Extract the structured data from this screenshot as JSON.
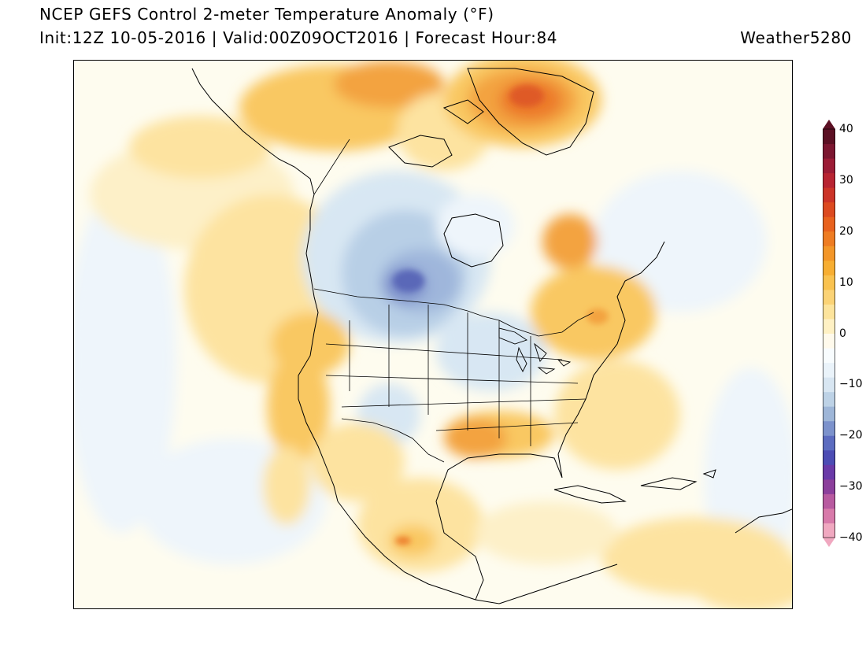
{
  "header": {
    "title": "NCEP GEFS Control 2-meter Temperature Anomaly (°F)",
    "subtitle": "Init:12Z 10-05-2016 | Valid:00Z09OCT2016 | Forecast Hour:84",
    "credit": "Weather5280"
  },
  "colorbar": {
    "units": "°F",
    "min": -40,
    "max": 40,
    "labels": [
      "40",
      "30",
      "20",
      "10",
      "0",
      "−10",
      "−20",
      "−30",
      "−40"
    ],
    "label_values": [
      40,
      30,
      20,
      10,
      0,
      -10,
      -20,
      -30,
      -40
    ],
    "colors": [
      "#f0a8c0",
      "#d87aaa",
      "#b85aa0",
      "#8c3f9c",
      "#6a3aa8",
      "#4c4cb4",
      "#5c6cc0",
      "#7c92cc",
      "#9eb6d8",
      "#bdd2e6",
      "#d8e6f2",
      "#eaf3fa",
      "#f8fcfe",
      "#fffaec",
      "#fff1c4",
      "#fde49c",
      "#fbd376",
      "#f9c24f",
      "#f7ae32",
      "#f39628",
      "#ee7c22",
      "#e8621e",
      "#dc4a20",
      "#cc3428",
      "#b82432",
      "#9c1c36",
      "#7c1630",
      "#5c1024"
    ]
  },
  "map": {
    "region": "North America",
    "palette": {
      "background": "#fefcef",
      "land_warm_weak": "#fdf0c8",
      "warm_light": "#fde3a0",
      "warm": "#f9c862",
      "warm_strong": "#f3a340",
      "hot": "#ec7a2c",
      "hottest": "#df5a28",
      "cool_weak": "#eef5fb",
      "cool": "#d8e7f3",
      "cool_strong": "#b8cfe6",
      "cold": "#9fb6db",
      "colder": "#7f92cc",
      "coldest": "#5a68b8",
      "outline": "#000000"
    }
  }
}
